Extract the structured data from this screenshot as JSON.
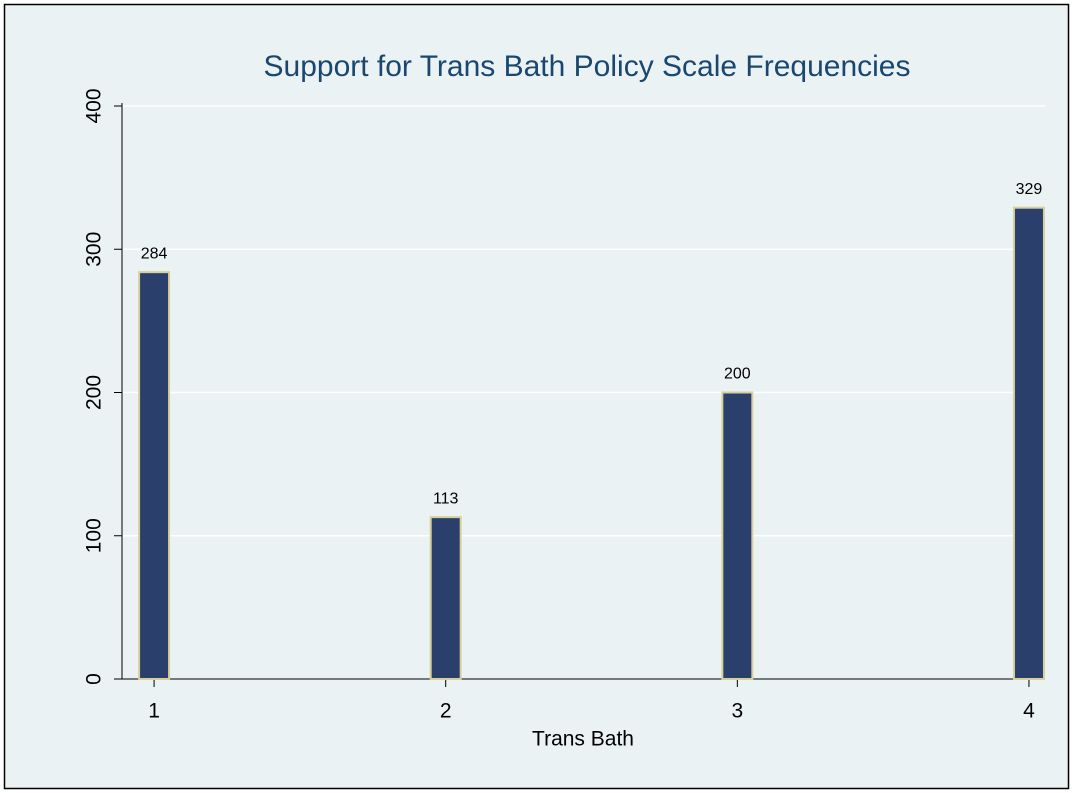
{
  "chart_data": {
    "type": "bar",
    "title": "Support for Trans Bath Policy Scale Frequencies",
    "x": [
      1,
      2,
      3,
      4
    ],
    "values": [
      284,
      113,
      200,
      329
    ],
    "color": "#2a3f6b",
    "xlabel": "Trans Bath",
    "xlim": [
      0.89,
      4.055
    ],
    "xticks": [
      1,
      2,
      3,
      4
    ],
    "ylim": [
      0,
      400
    ],
    "yticks": [
      0,
      100,
      200,
      300,
      400
    ],
    "grid": true
  }
}
